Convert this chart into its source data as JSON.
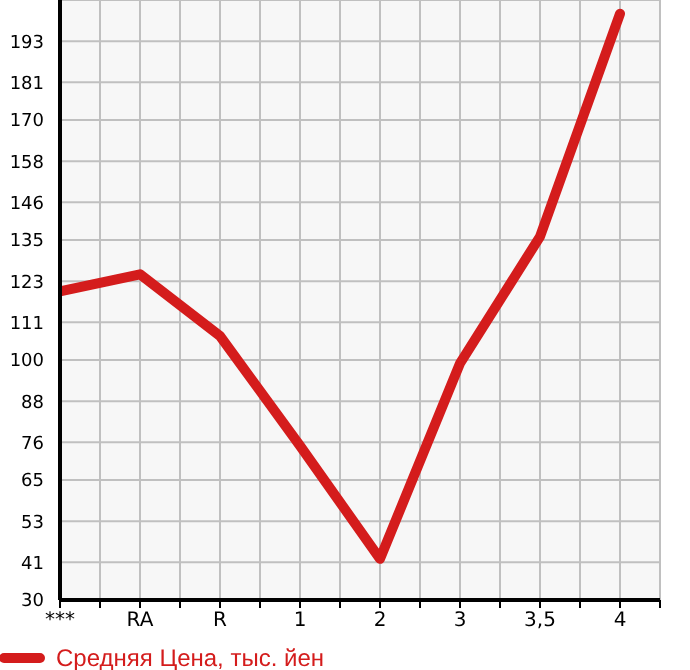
{
  "chart_data": {
    "type": "line",
    "categories": [
      "***",
      "RA",
      "R",
      "1",
      "2",
      "3",
      "3,5",
      "4"
    ],
    "series": [
      {
        "name": "Средняя Цена, тыс. йен",
        "color": "#d41c1c",
        "values": [
          120,
          125,
          107,
          75,
          42,
          99,
          136,
          201
        ]
      }
    ],
    "ylim": [
      30,
      205
    ],
    "yticks": [
      30,
      41,
      53,
      65,
      76,
      88,
      100,
      111,
      123,
      135,
      146,
      158,
      170,
      181,
      193
    ],
    "grid": true,
    "legend": "bottom",
    "marker": "none",
    "line_style": "solid"
  }
}
